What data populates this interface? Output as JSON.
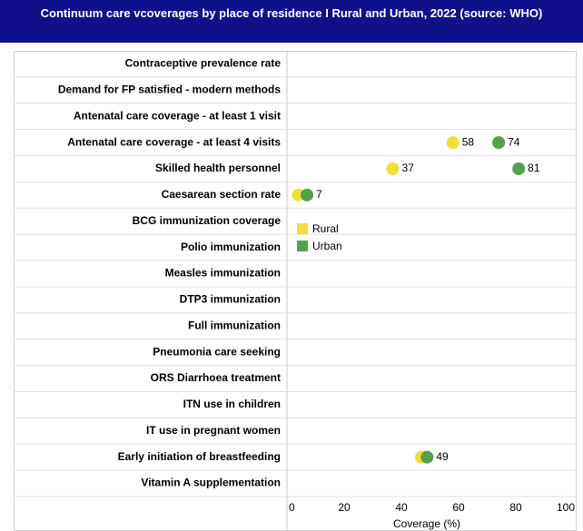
{
  "chart_data": {
    "type": "dot",
    "title": "Continuum care vcoverages by place of residence  I Rural and Urban, 2022 (source: WHO)",
    "x_label": "Coverage (%)",
    "categories": [
      "Contraceptive prevalence rate",
      "Demand for FP satisfied - modern methods",
      "Antenatal care coverage - at least 1 visit",
      "Antenatal care coverage - at least 4 visits",
      "Skilled health personnel",
      "Caesarean section rate",
      "BCG immunization coverage",
      "Polio immunization",
      "Measles immunization",
      "DTP3 immunization",
      "Full immunization",
      "Pneumonia care seeking",
      "ORS Diarrhoea treatment",
      "ITN use in children",
      "IT use in pregnant women",
      "Early initiation of breastfeeding",
      "Vitamin A supplementation"
    ],
    "series": [
      {
        "name": "Rural",
        "color": "#f0e035",
        "values": [
          null,
          null,
          null,
          58,
          37,
          4,
          null,
          null,
          null,
          null,
          null,
          null,
          null,
          null,
          null,
          47,
          null
        ],
        "value_labels": [
          null,
          null,
          null,
          "58",
          "37",
          null,
          null,
          null,
          null,
          null,
          null,
          null,
          null,
          null,
          null,
          null,
          null
        ]
      },
      {
        "name": "Urban",
        "color": "#55a04f",
        "values": [
          null,
          null,
          null,
          74,
          81,
          7,
          null,
          null,
          null,
          null,
          null,
          null,
          null,
          null,
          null,
          49,
          null
        ],
        "value_labels": [
          null,
          null,
          null,
          "74",
          "81",
          "7",
          null,
          null,
          null,
          null,
          null,
          null,
          null,
          null,
          null,
          "49",
          null
        ]
      }
    ],
    "xlim": [
      0,
      100
    ],
    "xticks": [
      0,
      20,
      40,
      60,
      80,
      100
    ],
    "grid": false
  }
}
